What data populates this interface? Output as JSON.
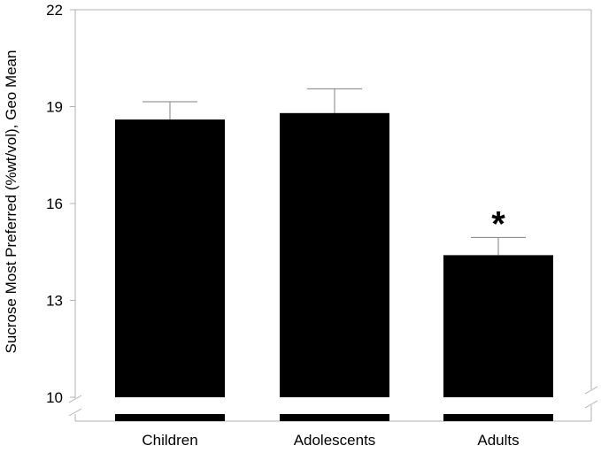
{
  "chart_data": {
    "type": "bar",
    "ylabel": "Sucrose Most Preferred (%wt/vol), Geo Mean",
    "categories": [
      "Children",
      "Adolescents",
      "Adults"
    ],
    "values": [
      18.6,
      18.8,
      14.4
    ],
    "error_upper": [
      19.15,
      19.55,
      14.95
    ],
    "annotations": [
      "",
      "",
      "*"
    ],
    "ylim": [
      10,
      22
    ],
    "yticks": [
      "22",
      "19",
      "16",
      "13",
      "10"
    ],
    "axis_break": true,
    "bar_color": "#000000",
    "grid": false
  }
}
